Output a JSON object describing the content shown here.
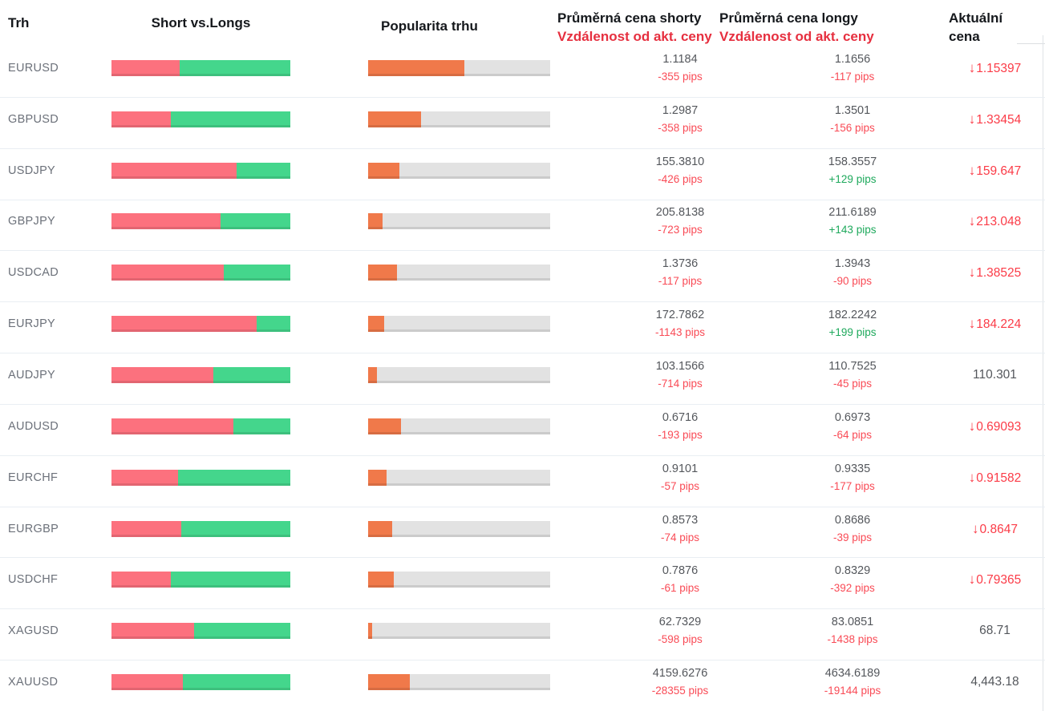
{
  "header": {
    "market": "Trh",
    "short_vs_longs": "Short vs.Longs",
    "popularity": "Popularita trhu",
    "avg_short_line1": "Průměrná cena shorty",
    "avg_short_line2": "Vzdálenost od akt. ceny",
    "avg_long_line1": "Průměrná cena longy",
    "avg_long_line2": "Vzdálenost od akt. ceny",
    "current_line1": "Aktuální",
    "current_line2": "cena"
  },
  "icons": {
    "down_arrow": "↓"
  },
  "colors": {
    "header_red": "#e62f3f",
    "short_bar": "#fc717e",
    "long_bar": "#44d68c",
    "popularity_bar": "#f0794a",
    "popularity_track": "#e2e2e2",
    "pips_negative": "#f94b56",
    "pips_positive": "#1ea95c",
    "current_down": "#fb3b47"
  },
  "rows": [
    {
      "market": "EURUSD",
      "short_pct": 38,
      "long_pct": 62,
      "popularity_pct": 53,
      "short_price": "1.1184",
      "short_pips": "-355 pips",
      "short_dir": "neg",
      "long_price": "1.1656",
      "long_pips": "-117 pips",
      "long_dir": "neg",
      "current": "1.15397",
      "arrow": true
    },
    {
      "market": "GBPUSD",
      "short_pct": 33,
      "long_pct": 67,
      "popularity_pct": 29,
      "short_price": "1.2987",
      "short_pips": "-358 pips",
      "short_dir": "neg",
      "long_price": "1.3501",
      "long_pips": "-156 pips",
      "long_dir": "neg",
      "current": "1.33454",
      "arrow": true
    },
    {
      "market": "USDJPY",
      "short_pct": 70,
      "long_pct": 30,
      "popularity_pct": 17,
      "short_price": "155.3810",
      "short_pips": "-426 pips",
      "short_dir": "neg",
      "long_price": "158.3557",
      "long_pips": "+129 pips",
      "long_dir": "pos",
      "current": "159.647",
      "arrow": true
    },
    {
      "market": "GBPJPY",
      "short_pct": 61,
      "long_pct": 39,
      "popularity_pct": 8,
      "short_price": "205.8138",
      "short_pips": "-723 pips",
      "short_dir": "neg",
      "long_price": "211.6189",
      "long_pips": "+143 pips",
      "long_dir": "pos",
      "current": "213.048",
      "arrow": true
    },
    {
      "market": "USDCAD",
      "short_pct": 63,
      "long_pct": 37,
      "popularity_pct": 16,
      "short_price": "1.3736",
      "short_pips": "-117 pips",
      "short_dir": "neg",
      "long_price": "1.3943",
      "long_pips": "-90 pips",
      "long_dir": "neg",
      "current": "1.38525",
      "arrow": true
    },
    {
      "market": "EURJPY",
      "short_pct": 81,
      "long_pct": 19,
      "popularity_pct": 9,
      "short_price": "172.7862",
      "short_pips": "-1143 pips",
      "short_dir": "neg",
      "long_price": "182.2242",
      "long_pips": "+199 pips",
      "long_dir": "pos",
      "current": "184.224",
      "arrow": true
    },
    {
      "market": "AUDJPY",
      "short_pct": 57,
      "long_pct": 43,
      "popularity_pct": 5,
      "short_price": "103.1566",
      "short_pips": "-714 pips",
      "short_dir": "neg",
      "long_price": "110.7525",
      "long_pips": "-45 pips",
      "long_dir": "neg",
      "current": "110.301",
      "arrow": false
    },
    {
      "market": "AUDUSD",
      "short_pct": 68,
      "long_pct": 32,
      "popularity_pct": 18,
      "short_price": "0.6716",
      "short_pips": "-193 pips",
      "short_dir": "neg",
      "long_price": "0.6973",
      "long_pips": "-64 pips",
      "long_dir": "neg",
      "current": "0.69093",
      "arrow": true
    },
    {
      "market": "EURCHF",
      "short_pct": 37,
      "long_pct": 63,
      "popularity_pct": 10,
      "short_price": "0.9101",
      "short_pips": "-57 pips",
      "short_dir": "neg",
      "long_price": "0.9335",
      "long_pips": "-177 pips",
      "long_dir": "neg",
      "current": "0.91582",
      "arrow": true
    },
    {
      "market": "EURGBP",
      "short_pct": 39,
      "long_pct": 61,
      "popularity_pct": 13,
      "short_price": "0.8573",
      "short_pips": "-74 pips",
      "short_dir": "neg",
      "long_price": "0.8686",
      "long_pips": "-39 pips",
      "long_dir": "neg",
      "current": "0.8647",
      "arrow": true
    },
    {
      "market": "USDCHF",
      "short_pct": 33,
      "long_pct": 67,
      "popularity_pct": 14,
      "short_price": "0.7876",
      "short_pips": "-61 pips",
      "short_dir": "neg",
      "long_price": "0.8329",
      "long_pips": "-392 pips",
      "long_dir": "neg",
      "current": "0.79365",
      "arrow": true
    },
    {
      "market": "XAGUSD",
      "short_pct": 46,
      "long_pct": 54,
      "popularity_pct": 2,
      "short_price": "62.7329",
      "short_pips": "-598 pips",
      "short_dir": "neg",
      "long_price": "83.0851",
      "long_pips": "-1438 pips",
      "long_dir": "neg",
      "current": "68.71",
      "arrow": false
    },
    {
      "market": "XAUUSD",
      "short_pct": 40,
      "long_pct": 60,
      "popularity_pct": 23,
      "short_price": "4159.6276",
      "short_pips": "-28355 pips",
      "short_dir": "neg",
      "long_price": "4634.6189",
      "long_pips": "-19144 pips",
      "long_dir": "neg",
      "current": "4,443.18",
      "arrow": false
    }
  ]
}
